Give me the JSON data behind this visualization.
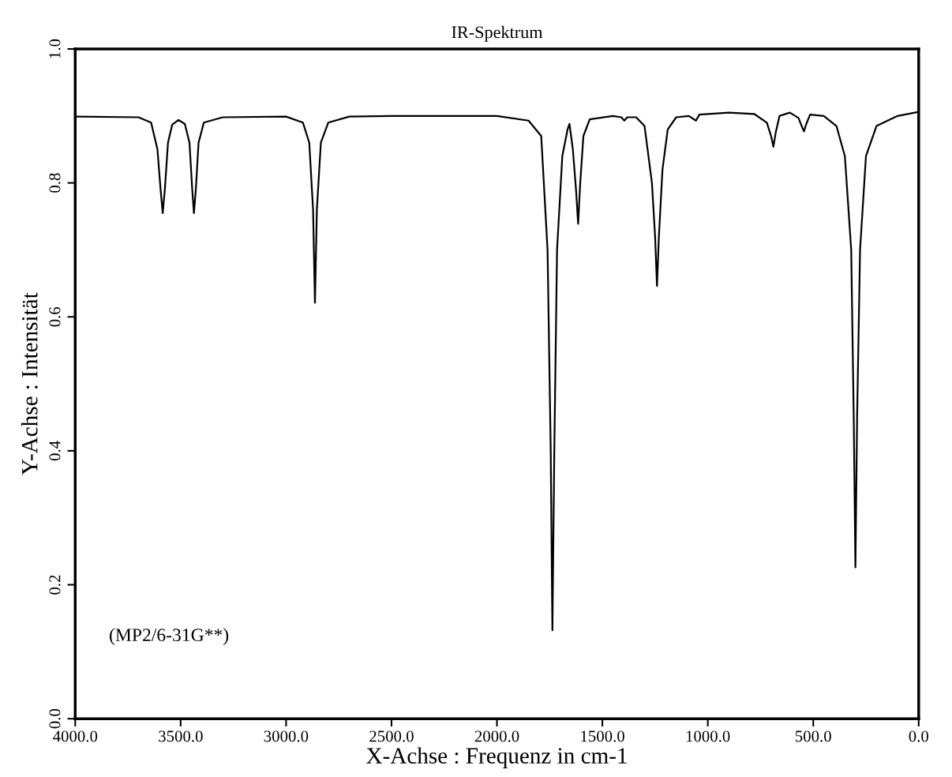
{
  "chart_data": {
    "type": "line",
    "title": "IR-Spektrum",
    "xlabel": "X-Achse : Frequenz in cm-1",
    "ylabel": "Y-Achse : Intensität",
    "annotations": [
      "(MP2/6-31G**)"
    ],
    "xlim": [
      4000,
      0
    ],
    "ylim": [
      0,
      1
    ],
    "xticks": [
      {
        "value": 4000,
        "label": "4000.0"
      },
      {
        "value": 3500,
        "label": "3500.0"
      },
      {
        "value": 3000,
        "label": "3000.0"
      },
      {
        "value": 2500,
        "label": "2500.0"
      },
      {
        "value": 2000,
        "label": "2000.0"
      },
      {
        "value": 1500,
        "label": "1500.0"
      },
      {
        "value": 1000,
        "label": "1000.0"
      },
      {
        "value": 500,
        "label": "500.0"
      },
      {
        "value": 0,
        "label": "0.0"
      }
    ],
    "yticks": [
      {
        "value": 0,
        "label": "0.0"
      },
      {
        "value": 0.2,
        "label": "0.2"
      },
      {
        "value": 0.4,
        "label": "0.4"
      },
      {
        "value": 0.6,
        "label": "0.6"
      },
      {
        "value": 0.8,
        "label": "0.8"
      },
      {
        "value": 1,
        "label": "1.0"
      }
    ],
    "marker": "none",
    "line_style": "solid",
    "series": [
      {
        "color": "#000000",
        "x": [
          4000,
          3700,
          3640,
          3610,
          3595,
          3585,
          3575,
          3560,
          3540,
          3510,
          3480,
          3458,
          3445,
          3437,
          3428,
          3415,
          3390,
          3300,
          3000,
          2920,
          2890,
          2872,
          2863,
          2854,
          2835,
          2800,
          2700,
          2500,
          2000,
          1850,
          1790,
          1760,
          1745,
          1737,
          1728,
          1715,
          1690,
          1665,
          1656,
          1640,
          1625,
          1615,
          1605,
          1590,
          1560,
          1450,
          1410,
          1396,
          1382,
          1340,
          1300,
          1265,
          1250,
          1241,
          1232,
          1215,
          1190,
          1150,
          1090,
          1056,
          1040,
          900,
          780,
          720,
          700,
          689,
          678,
          660,
          611,
          570,
          555,
          544,
          533,
          515,
          450,
          390,
          350,
          320,
          308,
          300,
          292,
          278,
          250,
          200,
          100,
          0
        ],
        "values": [
          0.899,
          0.898,
          0.89,
          0.85,
          0.79,
          0.755,
          0.79,
          0.86,
          0.887,
          0.894,
          0.888,
          0.86,
          0.79,
          0.755,
          0.79,
          0.86,
          0.89,
          0.898,
          0.899,
          0.89,
          0.86,
          0.76,
          0.621,
          0.76,
          0.86,
          0.89,
          0.899,
          0.9,
          0.9,
          0.893,
          0.87,
          0.7,
          0.4,
          0.132,
          0.4,
          0.7,
          0.84,
          0.88,
          0.888,
          0.85,
          0.79,
          0.739,
          0.8,
          0.87,
          0.895,
          0.9,
          0.898,
          0.893,
          0.898,
          0.898,
          0.885,
          0.8,
          0.72,
          0.646,
          0.72,
          0.82,
          0.88,
          0.898,
          0.9,
          0.893,
          0.902,
          0.905,
          0.903,
          0.89,
          0.87,
          0.854,
          0.875,
          0.9,
          0.905,
          0.897,
          0.885,
          0.877,
          0.888,
          0.902,
          0.9,
          0.885,
          0.84,
          0.7,
          0.45,
          0.226,
          0.45,
          0.7,
          0.84,
          0.885,
          0.9,
          0.906
        ]
      }
    ]
  }
}
